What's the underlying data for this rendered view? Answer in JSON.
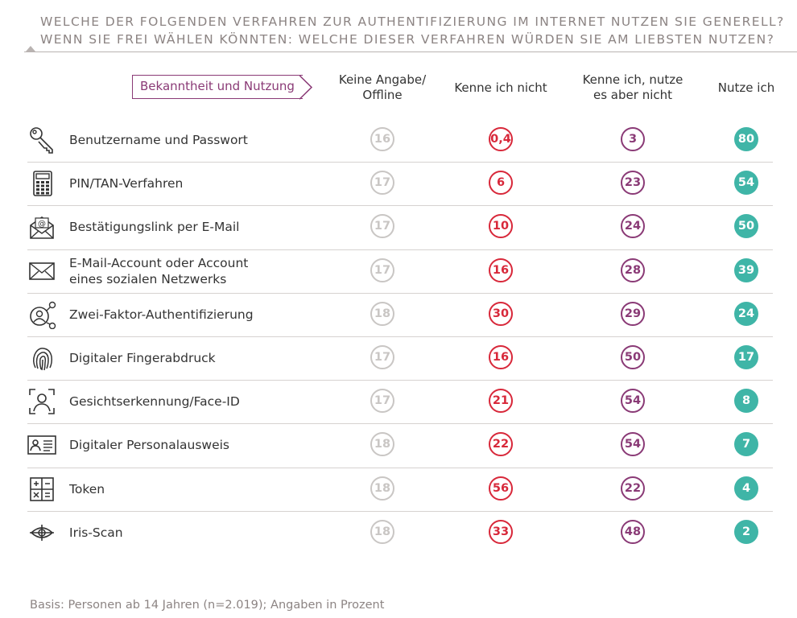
{
  "title": {
    "line1": "WELCHE DER FOLGENDEN VERFAHREN ZUR AUTHENTIFIZIERUNG IM INTERNET NUTZEN SIE GENERELL?",
    "line2": "WENN SIE FREI WÄHLEN KÖNNTEN: WELCHE DIESER VERFAHREN WÜRDEN SIE AM LIEBSTEN NUTZEN?"
  },
  "tag": "Bekanntheit und Nutzung",
  "colors": {
    "keine_angabe": "#c9c6c4",
    "kenne_nicht": "#d8283a",
    "kenne_nutze_nicht": "#8a3a76",
    "nutze": "#3fb5a7",
    "title": "#8c8483"
  },
  "chart_data": {
    "type": "table",
    "columns": [
      {
        "key": "keine_angabe",
        "label_line1": "Keine Angabe/",
        "label_line2": "Offline"
      },
      {
        "key": "kenne_nicht",
        "label_line1": "Kenne ich nicht",
        "label_line2": ""
      },
      {
        "key": "kenne_nutze_nicht",
        "label_line1": "Kenne ich, nutze",
        "label_line2": "es aber nicht"
      },
      {
        "key": "nutze",
        "label_line1": "Nutze ich",
        "label_line2": ""
      }
    ],
    "rows": [
      {
        "icon": "key-icon",
        "label_line1": "Benutzername und Passwort",
        "label_line2": "",
        "values": [
          "16",
          "0,4",
          "3",
          "80"
        ]
      },
      {
        "icon": "calculator-icon",
        "label_line1": "PIN/TAN-Verfahren",
        "label_line2": "",
        "values": [
          "17",
          "6",
          "23",
          "54"
        ]
      },
      {
        "icon": "email-link-icon",
        "label_line1": "Bestätigungslink per E-Mail",
        "label_line2": "",
        "values": [
          "17",
          "10",
          "24",
          "50"
        ]
      },
      {
        "icon": "envelope-icon",
        "label_line1": "E-Mail-Account oder Account",
        "label_line2": "eines sozialen Netzwerks",
        "values": [
          "17",
          "16",
          "28",
          "39"
        ]
      },
      {
        "icon": "two-factor-icon",
        "label_line1": "Zwei-Faktor-Authentifizierung",
        "label_line2": "",
        "values": [
          "18",
          "30",
          "29",
          "24"
        ]
      },
      {
        "icon": "fingerprint-icon",
        "label_line1": "Digitaler Fingerabdruck",
        "label_line2": "",
        "values": [
          "17",
          "16",
          "50",
          "17"
        ]
      },
      {
        "icon": "face-id-icon",
        "label_line1": "Gesichtserkennung/Face-ID",
        "label_line2": "",
        "values": [
          "17",
          "21",
          "54",
          "8"
        ]
      },
      {
        "icon": "id-card-icon",
        "label_line1": "Digitaler Personalausweis",
        "label_line2": "",
        "values": [
          "18",
          "22",
          "54",
          "7"
        ]
      },
      {
        "icon": "token-icon",
        "label_line1": "Token",
        "label_line2": "",
        "values": [
          "18",
          "56",
          "22",
          "4"
        ]
      },
      {
        "icon": "eye-scan-icon",
        "label_line1": "Iris-Scan",
        "label_line2": "",
        "values": [
          "18",
          "33",
          "48",
          "2"
        ]
      }
    ]
  },
  "footer": "Basis: Personen ab 14 Jahren (n=2.019); Angaben in Prozent"
}
